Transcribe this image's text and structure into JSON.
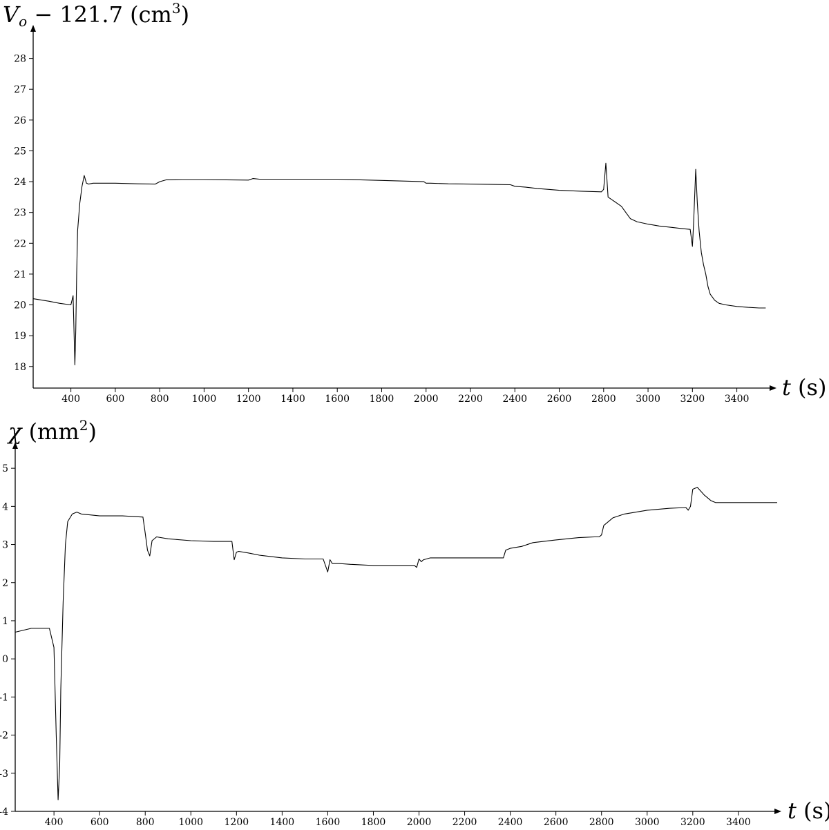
{
  "chart_data": [
    {
      "type": "line",
      "ylabel": {
        "symbol": "V",
        "subscript": "o",
        "rest": " − 121.7 (cm",
        "sup": "3",
        "close": ")"
      },
      "xlabel": {
        "symbol": "t",
        "rest": " (s)"
      },
      "xlim": [
        230,
        3560
      ],
      "ylim": [
        17.3,
        29
      ],
      "xticks": [
        400,
        600,
        800,
        1000,
        1200,
        1400,
        1600,
        1800,
        2000,
        2200,
        2400,
        2600,
        2800,
        3000,
        3200,
        3400
      ],
      "yticks": [
        18,
        19,
        20,
        21,
        22,
        23,
        24,
        25,
        26,
        27,
        28
      ],
      "grid": false,
      "series": [
        {
          "color": "#000000",
          "x": [
            230,
            300,
            350,
            400,
            410,
            418,
            422,
            426,
            430,
            440,
            450,
            460,
            470,
            480,
            500,
            600,
            700,
            780,
            800,
            830,
            850,
            900,
            1000,
            1100,
            1200,
            1220,
            1250,
            1400,
            1600,
            1800,
            1990,
            2000,
            2020,
            2100,
            2200,
            2300,
            2380,
            2400,
            2450,
            2500,
            2600,
            2700,
            2790,
            2800,
            2810,
            2820,
            2840,
            2860,
            2880,
            2900,
            2920,
            2950,
            3000,
            3050,
            3100,
            3150,
            3190,
            3200,
            3205,
            3215,
            3222,
            3230,
            3240,
            3250,
            3260,
            3270,
            3280,
            3300,
            3320,
            3350,
            3400,
            3450,
            3500,
            3530
          ],
          "y": [
            20.2,
            20.12,
            20.05,
            20.0,
            20.3,
            18.05,
            19.2,
            21.0,
            22.4,
            23.3,
            23.85,
            24.2,
            23.95,
            23.92,
            23.95,
            23.95,
            23.93,
            23.92,
            24.0,
            24.06,
            24.06,
            24.07,
            24.07,
            24.06,
            24.05,
            24.1,
            24.08,
            24.08,
            24.08,
            24.04,
            24.0,
            23.95,
            23.95,
            23.93,
            23.92,
            23.91,
            23.9,
            23.85,
            23.82,
            23.78,
            23.72,
            23.69,
            23.67,
            23.75,
            24.6,
            23.5,
            23.4,
            23.3,
            23.2,
            23.0,
            22.8,
            22.7,
            22.62,
            22.56,
            22.52,
            22.48,
            22.45,
            21.9,
            22.6,
            24.4,
            23.3,
            22.4,
            21.7,
            21.3,
            21.0,
            20.6,
            20.35,
            20.15,
            20.05,
            20.0,
            19.95,
            19.92,
            19.9,
            19.9
          ]
        }
      ]
    },
    {
      "type": "line",
      "ylabel": {
        "symbol": "χ",
        "rest": " (mm",
        "sup": "2",
        "close": ")"
      },
      "xlabel": {
        "symbol": "t",
        "rest": " (s)"
      },
      "xlim": [
        230,
        3570
      ],
      "ylim": [
        -4,
        5.6
      ],
      "xticks": [
        400,
        600,
        800,
        1000,
        1200,
        1400,
        1600,
        1800,
        2000,
        2200,
        2400,
        2600,
        2800,
        3000,
        3200,
        3400
      ],
      "yticks": [
        -4,
        -3,
        -2,
        -1,
        0,
        1,
        2,
        3,
        4,
        5
      ],
      "grid": false,
      "series": [
        {
          "color": "#000000",
          "x": [
            230,
            300,
            380,
            400,
            410,
            418,
            425,
            430,
            440,
            450,
            460,
            480,
            500,
            520,
            600,
            700,
            790,
            800,
            810,
            820,
            830,
            850,
            900,
            1000,
            1100,
            1180,
            1190,
            1200,
            1210,
            1250,
            1300,
            1400,
            1500,
            1580,
            1600,
            1610,
            1620,
            1650,
            1700,
            1800,
            1900,
            1980,
            1990,
            2000,
            2010,
            2020,
            2050,
            2100,
            2200,
            2300,
            2370,
            2380,
            2400,
            2450,
            2500,
            2600,
            2700,
            2770,
            2790,
            2800,
            2810,
            2830,
            2850,
            2900,
            3000,
            3100,
            3170,
            3180,
            3190,
            3200,
            3220,
            3250,
            3280,
            3300,
            3400,
            3500,
            3570
          ],
          "y": [
            0.7,
            0.8,
            0.8,
            0.3,
            -2.0,
            -3.7,
            -2.8,
            -0.8,
            1.5,
            3.0,
            3.6,
            3.8,
            3.85,
            3.8,
            3.75,
            3.75,
            3.72,
            3.3,
            2.85,
            2.7,
            3.1,
            3.2,
            3.15,
            3.1,
            3.08,
            3.08,
            2.6,
            2.8,
            2.82,
            2.78,
            2.72,
            2.65,
            2.62,
            2.62,
            2.28,
            2.6,
            2.5,
            2.5,
            2.48,
            2.45,
            2.45,
            2.45,
            2.4,
            2.62,
            2.55,
            2.6,
            2.65,
            2.65,
            2.65,
            2.65,
            2.65,
            2.85,
            2.9,
            2.95,
            3.05,
            3.12,
            3.18,
            3.2,
            3.2,
            3.25,
            3.5,
            3.6,
            3.7,
            3.8,
            3.9,
            3.95,
            3.97,
            3.9,
            4.0,
            4.45,
            4.5,
            4.3,
            4.15,
            4.1,
            4.1,
            4.1,
            4.1
          ]
        }
      ]
    }
  ]
}
